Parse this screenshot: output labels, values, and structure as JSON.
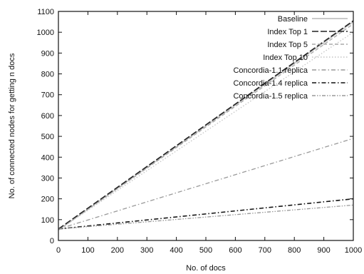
{
  "chart_data": {
    "type": "line",
    "title": "",
    "xlabel": "No. of docs",
    "ylabel": "No. of connected nodes for getting n docs",
    "xlim": [
      0,
      1000
    ],
    "ylim": [
      0,
      1100
    ],
    "x_ticks": [
      "0",
      "100",
      "200",
      "300",
      "400",
      "500",
      "600",
      "700",
      "800",
      "900",
      "1000"
    ],
    "y_ticks": [
      "0",
      "100",
      "200",
      "300",
      "400",
      "500",
      "600",
      "700",
      "800",
      "900",
      "1000",
      "1100"
    ],
    "grid": false,
    "legend_position": "top-right",
    "x": [
      0,
      1000
    ],
    "series": [
      {
        "name": "Baseline",
        "values": [
          50,
          1050
        ],
        "color": "#b8b8b8",
        "dash": "solid"
      },
      {
        "name": "Index Top 1",
        "values": [
          55,
          1055
        ],
        "color": "#222222",
        "dash": "long-dash"
      },
      {
        "name": "Index Top 5",
        "values": [
          50,
          1040
        ],
        "color": "#aaaaaa",
        "dash": "dash"
      },
      {
        "name": "Index Top 10",
        "values": [
          50,
          1000
        ],
        "color": "#c4c4c4",
        "dash": "dot"
      },
      {
        "name": "Concordia-1.1 replica",
        "values": [
          55,
          490
        ],
        "color": "#9a9a9a",
        "dash": "dash-dot"
      },
      {
        "name": "Concordia-1.4 replica",
        "values": [
          55,
          200
        ],
        "color": "#111111",
        "dash": "dash-dot"
      },
      {
        "name": "Concordia-1.5 replica",
        "values": [
          55,
          170
        ],
        "color": "#999999",
        "dash": "dash-dot-dot"
      }
    ]
  }
}
